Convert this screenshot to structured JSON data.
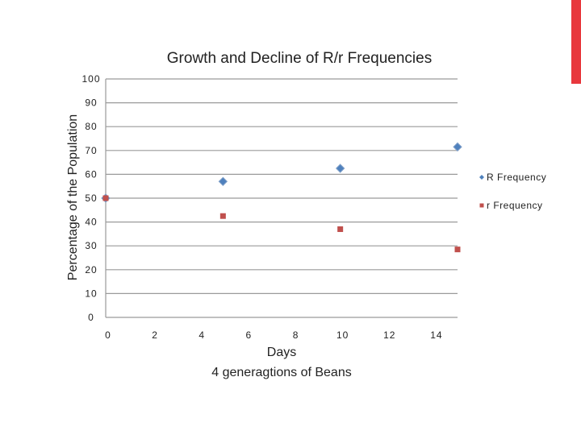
{
  "chart_data": {
    "type": "scatter",
    "title": "Growth and Decline of R/r Frequencies",
    "xlabel": "Days",
    "xlabel_sub": "4 generagtions of Beans",
    "ylabel": "Percentage of the Population",
    "xlim": [
      0,
      15
    ],
    "ylim": [
      0,
      100
    ],
    "x_ticks": [
      "0",
      "2",
      "4",
      "6",
      "8",
      "10",
      "12",
      "14"
    ],
    "y_ticks": [
      "0",
      "10",
      "20",
      "30",
      "40",
      "50",
      "60",
      "70",
      "80",
      "90",
      "100"
    ],
    "grid": "horizontal",
    "legend_position": "right",
    "series": [
      {
        "name": "R Frequency",
        "marker": "diamond",
        "color": "#4f81bd",
        "points": [
          [
            0,
            50
          ],
          [
            5,
            57
          ],
          [
            10,
            62.5
          ],
          [
            15,
            71.5
          ]
        ]
      },
      {
        "name": "r Frequency",
        "marker": "square",
        "color": "#c0504d",
        "points": [
          [
            0,
            50
          ],
          [
            5,
            42.5
          ],
          [
            10,
            37
          ],
          [
            15,
            28.5
          ]
        ]
      }
    ]
  },
  "accent_color": "#e8383d"
}
